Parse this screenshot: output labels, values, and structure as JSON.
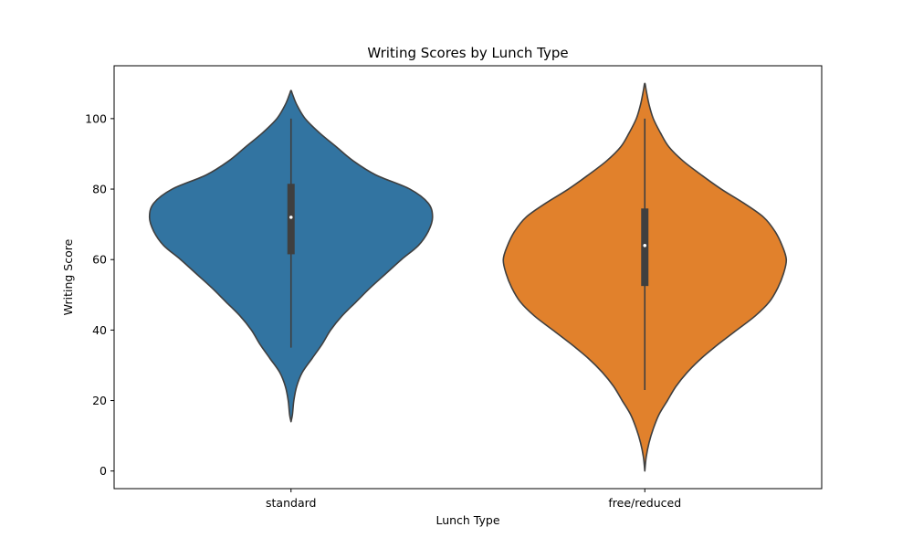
{
  "chart_data": {
    "type": "violin",
    "title": "Writing Scores by Lunch Type",
    "xlabel": "Lunch Type",
    "ylabel": "Writing Score",
    "ylim": [
      -5,
      115
    ],
    "yticks": [
      0,
      20,
      40,
      60,
      80,
      100
    ],
    "grid": false,
    "categories": [
      "standard",
      "free/reduced"
    ],
    "series": [
      {
        "category": "standard",
        "color": "#3274a1",
        "min": 35,
        "q1": 61.5,
        "median": 72,
        "q3": 81.5,
        "max": 100,
        "density": [
          [
            14,
            0.0
          ],
          [
            16,
            0.01
          ],
          [
            20,
            0.02
          ],
          [
            24,
            0.04
          ],
          [
            28,
            0.08
          ],
          [
            32,
            0.15
          ],
          [
            36,
            0.22
          ],
          [
            40,
            0.28
          ],
          [
            44,
            0.36
          ],
          [
            48,
            0.46
          ],
          [
            52,
            0.56
          ],
          [
            56,
            0.67
          ],
          [
            60,
            0.78
          ],
          [
            64,
            0.9
          ],
          [
            68,
            0.97
          ],
          [
            72,
            1.0
          ],
          [
            76,
            0.97
          ],
          [
            80,
            0.84
          ],
          [
            84,
            0.6
          ],
          [
            88,
            0.44
          ],
          [
            92,
            0.32
          ],
          [
            96,
            0.2
          ],
          [
            100,
            0.1
          ],
          [
            104,
            0.04
          ],
          [
            107,
            0.01
          ],
          [
            108,
            0.0
          ]
        ]
      },
      {
        "category": "free/reduced",
        "color": "#e1812c",
        "min": 23,
        "q1": 52.5,
        "median": 64,
        "q3": 74.5,
        "max": 100,
        "density": [
          [
            0,
            0.0
          ],
          [
            4,
            0.01
          ],
          [
            8,
            0.03
          ],
          [
            12,
            0.06
          ],
          [
            16,
            0.1
          ],
          [
            20,
            0.16
          ],
          [
            24,
            0.22
          ],
          [
            28,
            0.3
          ],
          [
            32,
            0.4
          ],
          [
            36,
            0.52
          ],
          [
            40,
            0.65
          ],
          [
            44,
            0.78
          ],
          [
            48,
            0.88
          ],
          [
            52,
            0.94
          ],
          [
            56,
            0.98
          ],
          [
            60,
            1.0
          ],
          [
            64,
            0.97
          ],
          [
            68,
            0.92
          ],
          [
            72,
            0.84
          ],
          [
            76,
            0.7
          ],
          [
            80,
            0.54
          ],
          [
            84,
            0.4
          ],
          [
            88,
            0.27
          ],
          [
            92,
            0.17
          ],
          [
            96,
            0.11
          ],
          [
            100,
            0.06
          ],
          [
            104,
            0.03
          ],
          [
            108,
            0.01
          ],
          [
            110,
            0.0
          ]
        ]
      }
    ]
  }
}
